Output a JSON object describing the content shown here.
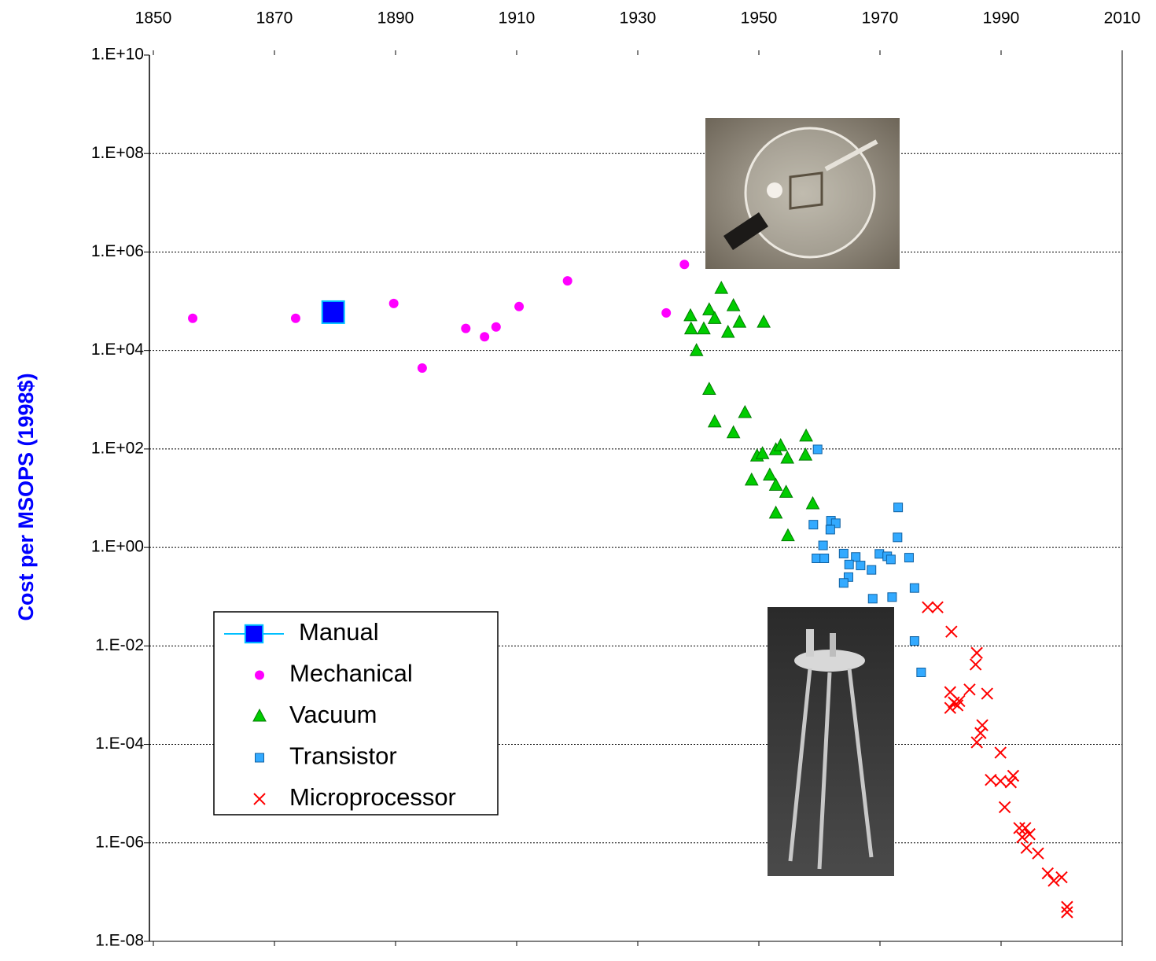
{
  "chart_data": {
    "type": "scatter",
    "y_label": "Cost per MSOPS (1998$)",
    "y_scale": "log",
    "grid": true,
    "xlim": [
      1850,
      2010
    ],
    "xticks": [
      1850,
      1870,
      1890,
      1910,
      1930,
      1950,
      1970,
      1990,
      2010
    ],
    "ylim": [
      1e-08,
      10000000000.0
    ],
    "yticks": [
      {
        "value": 1e-08,
        "label": "1.E-08"
      },
      {
        "value": 1e-06,
        "label": "1.E-06"
      },
      {
        "value": 0.0001,
        "label": "1.E-04"
      },
      {
        "value": 0.01,
        "label": "1.E-02"
      },
      {
        "value": 1,
        "label": "1.E+00"
      },
      {
        "value": 100.0,
        "label": "1.E+02"
      },
      {
        "value": 10000.0,
        "label": "1.E+04"
      },
      {
        "value": 1000000.0,
        "label": "1.E+06"
      },
      {
        "value": 100000000.0,
        "label": "1.E+08"
      },
      {
        "value": 10000000000.0,
        "label": "1.E+10"
      }
    ],
    "series": [
      {
        "name": "Manual",
        "color": "#0000ff",
        "line_color": "#00bfff",
        "marker": "big-square",
        "x": [
          1879.7
        ],
        "values": [
          60000
        ]
      },
      {
        "name": "Mechanical",
        "color": "#ff00ff",
        "marker": "circle",
        "x": [
          1856.5,
          1873.5,
          1889.7,
          1894.4,
          1901.6,
          1904.7,
          1906.6,
          1910.4,
          1918.4,
          1934.7,
          1937.7
        ],
        "values": [
          45000,
          45000,
          90000,
          4400,
          28000,
          19000,
          30000,
          78000,
          260000,
          58000,
          560000
        ]
      },
      {
        "name": "Vacuum",
        "color": "#00cc00",
        "marker": "triangle",
        "x": [
          1938.7,
          1938.8,
          1940.9,
          1941.8,
          1942.7,
          1943.8,
          1944.9,
          1945.8,
          1946.8,
          1950.8,
          1939.7,
          1941.8,
          1942.7,
          1945.8,
          1947.7,
          1957.8,
          1949.7,
          1950.6,
          1952.8,
          1953.6,
          1954.7,
          1957.7,
          1948.8,
          1951.8,
          1952.8,
          1954.5,
          1958.9,
          1952.8,
          1954.8
        ],
        "values": [
          50000,
          27000,
          27000,
          66000,
          44000,
          180000,
          23000,
          80000,
          37000,
          37000,
          9800,
          1600,
          350,
          210,
          540,
          180,
          71,
          79,
          95,
          115,
          64,
          74,
          23,
          29,
          18,
          13,
          7.6,
          4.9,
          1.7
        ]
      },
      {
        "name": "Transistor",
        "color": "#33aaff",
        "marker": "square",
        "x": [
          1959.7,
          1973.0,
          1959.0,
          1961.9,
          1962.7,
          1961.8,
          1972.9,
          1960.6,
          1959.5,
          1960.8,
          1964.0,
          1966.0,
          1964.9,
          1966.8,
          1969.9,
          1971.2,
          1971.8,
          1974.8,
          1964.8,
          1964.0,
          1968.6,
          1975.7,
          1968.8,
          1972.0,
          1975.7,
          1976.8
        ],
        "values": [
          98,
          6.5,
          2.9,
          3.5,
          3.1,
          2.3,
          1.6,
          1.1,
          0.6,
          0.6,
          0.75,
          0.64,
          0.45,
          0.43,
          0.74,
          0.66,
          0.57,
          0.62,
          0.25,
          0.19,
          0.35,
          0.15,
          0.091,
          0.098,
          0.0126,
          0.0029
        ]
      },
      {
        "name": "Microprocessor",
        "color": "#ff0000",
        "marker": "x",
        "x": [
          1977.9,
          1979.5,
          1981.8,
          1986.0,
          1985.8,
          1981.6,
          1984.8,
          1987.7,
          1982.2,
          1983.1,
          1981.6,
          1982.8,
          1986.9,
          1986.6,
          1986.0,
          1989.9,
          1988.3,
          1989.9,
          1992.0,
          1991.6,
          1990.6,
          1993.0,
          1994.0,
          1994.7,
          1993.5,
          1994.2,
          1996.1,
          1997.7,
          1998.7,
          2000.0,
          2000.9,
          2000.9
        ],
        "values": [
          0.061,
          0.061,
          0.0195,
          0.0072,
          0.0042,
          0.00115,
          0.0013,
          0.00107,
          0.00071,
          0.00076,
          0.00055,
          0.00062,
          0.000245,
          0.00017,
          0.00011,
          6.8e-05,
          1.9e-05,
          1.8e-05,
          2.3e-05,
          1.7e-05,
          5.3e-06,
          2e-06,
          2e-06,
          1.5e-06,
          1.3e-06,
          7.9e-07,
          6.1e-07,
          2.4e-07,
          1.7e-07,
          2e-07,
          5e-08,
          3.9e-08
        ]
      }
    ]
  }
}
